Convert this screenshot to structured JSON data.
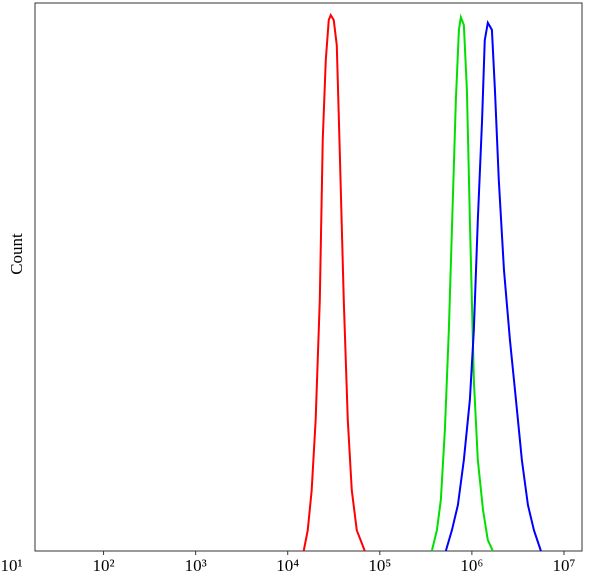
{
  "chart_data": {
    "type": "line",
    "y_label": "Count",
    "xscale": "log",
    "xlim": [
      18,
      15700000
    ],
    "ylim": [
      0,
      100
    ],
    "xticks": [
      {
        "value": 10,
        "label": "10¹"
      },
      {
        "value": 100,
        "label": "10²"
      },
      {
        "value": 1000,
        "label": "10³"
      },
      {
        "value": 10000,
        "label": "10⁴"
      },
      {
        "value": 100000,
        "label": "10⁵"
      },
      {
        "value": 1000000,
        "label": "10⁶"
      },
      {
        "value": 10000000,
        "label": "10⁷"
      }
    ],
    "series": [
      {
        "color": "#ff0000",
        "x": [
          14900,
          16500,
          18200,
          20100,
          22300,
          24000,
          25900,
          27900,
          29300,
          31600,
          34100,
          36700,
          40600,
          44900,
          49600,
          56200,
          68700
        ],
        "values": [
          0,
          3.8,
          11.1,
          23.9,
          45.8,
          75,
          89.6,
          96.9,
          97.8,
          96.9,
          92.3,
          73.2,
          45.8,
          23.9,
          11.1,
          3.8,
          0
        ]
      },
      {
        "color": "#00e000",
        "x": [
          367000,
          417000,
          460000,
          509000,
          562000,
          621000,
          670000,
          723000,
          759000,
          818000,
          883000,
          951000,
          1050000,
          1160000,
          1320000,
          1490000,
          1690000
        ],
        "values": [
          0,
          3.8,
          9.3,
          22.1,
          40.3,
          64.1,
          82.3,
          95.1,
          97.4,
          96,
          84.1,
          60.4,
          31.2,
          16.6,
          7.5,
          2,
          0
        ]
      },
      {
        "color": "#0000ff",
        "x": [
          521000,
          607000,
          705000,
          818000,
          951000,
          1050000,
          1160000,
          1290000,
          1380000,
          1490000,
          1650000,
          1780000,
          1960000,
          2230000,
          2590000,
          3010000,
          3490000,
          4060000,
          4720000,
          5620000
        ],
        "values": [
          0,
          3.8,
          8.4,
          16.6,
          27.6,
          40.3,
          60.4,
          78.6,
          93.2,
          96.4,
          95.1,
          84.1,
          67.7,
          51.3,
          38.5,
          27.6,
          16.6,
          8.4,
          3.8,
          0
        ]
      }
    ]
  }
}
